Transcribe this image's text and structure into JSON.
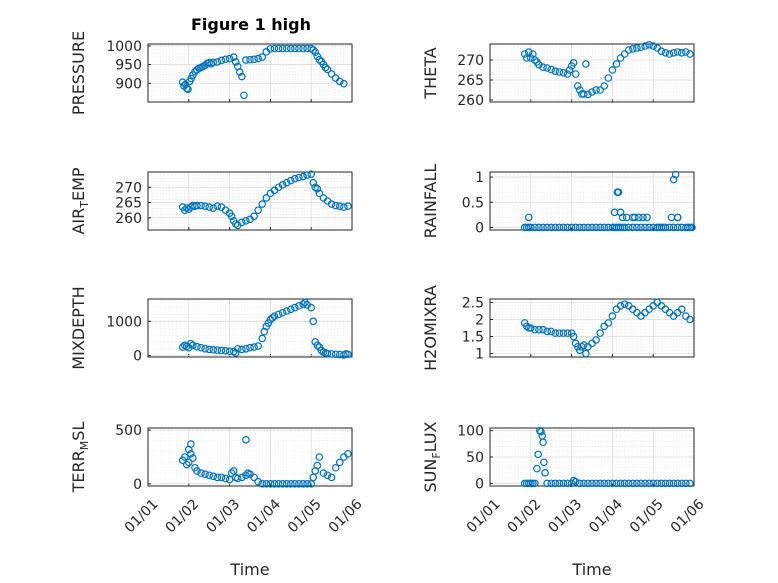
{
  "figure_title": "Figure 1 high",
  "x_tick_labels": [
    "01/01",
    "01/02",
    "01/03",
    "01/04",
    "01/05",
    "01/06"
  ],
  "x_label": "Time",
  "colors": {
    "marker": "#0072BD",
    "axis": "#262626",
    "grid": "#dcdcdc"
  },
  "chart_data": [
    {
      "type": "scatter",
      "ylabel": "PRESSURE",
      "xlim": [
        0,
        5
      ],
      "ylim": [
        850,
        1005
      ],
      "yticks": [
        900,
        950,
        1000
      ],
      "ytick_labels": [
        "900",
        "950",
        "1000"
      ],
      "x": [
        0.85,
        0.88,
        0.92,
        0.95,
        0.98,
        1.02,
        1.06,
        1.1,
        1.15,
        1.2,
        1.25,
        1.3,
        1.35,
        1.4,
        1.45,
        1.5,
        1.55,
        1.6,
        1.7,
        1.8,
        1.9,
        2.0,
        2.1,
        2.15,
        2.2,
        2.25,
        2.3,
        2.35,
        2.4,
        2.5,
        2.6,
        2.7,
        2.8,
        2.9,
        3.0,
        3.1,
        3.2,
        3.3,
        3.4,
        3.5,
        3.6,
        3.7,
        3.8,
        3.9,
        4.0,
        4.05,
        4.1,
        4.15,
        4.2,
        4.25,
        4.3,
        4.35,
        4.4,
        4.5,
        4.6,
        4.7,
        4.8
      ],
      "y": [
        903,
        893,
        897,
        886,
        884,
        905,
        913,
        922,
        931,
        936,
        940,
        942,
        945,
        948,
        953,
        955,
        952,
        956,
        957,
        961,
        964,
        966,
        970,
        957,
        945,
        930,
        918,
        868,
        962,
        963,
        964,
        966,
        970,
        984,
        992,
        993,
        993,
        993,
        993,
        993,
        993,
        993,
        993,
        993,
        993,
        989,
        983,
        972,
        963,
        958,
        950,
        942,
        937,
        925,
        914,
        905,
        899
      ]
    },
    {
      "type": "scatter",
      "ylabel": "THETA",
      "xlim": [
        0,
        5
      ],
      "ylim": [
        259.5,
        274
      ],
      "yticks": [
        260,
        265,
        270
      ],
      "ytick_labels": [
        "260",
        "265",
        "270"
      ],
      "x": [
        0.85,
        0.9,
        0.95,
        1.0,
        1.05,
        1.1,
        1.15,
        1.2,
        1.3,
        1.4,
        1.5,
        1.6,
        1.7,
        1.8,
        1.9,
        1.95,
        2.0,
        2.05,
        2.1,
        2.15,
        2.2,
        2.25,
        2.3,
        2.35,
        2.4,
        2.5,
        2.6,
        2.7,
        2.8,
        2.9,
        3.0,
        3.1,
        3.2,
        3.3,
        3.4,
        3.5,
        3.6,
        3.7,
        3.8,
        3.9,
        4.0,
        4.1,
        4.2,
        4.3,
        4.4,
        4.5,
        4.6,
        4.7,
        4.8,
        4.9
      ],
      "y": [
        271.5,
        270.5,
        272,
        270.5,
        271.5,
        270,
        269.5,
        268.8,
        268.2,
        268,
        267.6,
        267.2,
        267,
        266.8,
        266.5,
        267.5,
        268.5,
        269.3,
        266.5,
        263.5,
        262.5,
        261.5,
        261.5,
        269,
        261.4,
        262,
        262.5,
        262.5,
        263.5,
        265.5,
        267.5,
        269,
        270.5,
        271.5,
        272.5,
        272.8,
        273,
        273.2,
        273.5,
        273.8,
        273.5,
        273,
        272.2,
        271.8,
        271.5,
        271.8,
        272,
        271.8,
        272,
        271.5
      ]
    },
    {
      "type": "scatter",
      "ylabel": "AIR_TEMP",
      "xlim": [
        0,
        5
      ],
      "ylim": [
        256,
        275
      ],
      "yticks": [
        260,
        265,
        270
      ],
      "ytick_labels": [
        "260",
        "265",
        "270"
      ],
      "x": [
        0.85,
        0.9,
        0.95,
        1.0,
        1.05,
        1.1,
        1.15,
        1.2,
        1.3,
        1.4,
        1.5,
        1.6,
        1.7,
        1.8,
        1.9,
        2.0,
        2.05,
        2.1,
        2.15,
        2.2,
        2.3,
        2.4,
        2.5,
        2.6,
        2.7,
        2.8,
        2.9,
        3.0,
        3.1,
        3.2,
        3.3,
        3.4,
        3.5,
        3.6,
        3.7,
        3.8,
        3.9,
        4.0,
        4.05,
        4.1,
        4.15,
        4.2,
        4.3,
        4.4,
        4.5,
        4.6,
        4.7,
        4.8,
        4.9
      ],
      "y": [
        263.5,
        262.5,
        263.2,
        262.8,
        263.5,
        264,
        263.8,
        264,
        264,
        263.8,
        263.5,
        263.2,
        263.8,
        263.5,
        262.5,
        261.5,
        260.5,
        259,
        258,
        257.5,
        258.5,
        259,
        259.5,
        260.5,
        262.5,
        264.5,
        266.5,
        268,
        269,
        270,
        270.8,
        271.5,
        272.2,
        272.8,
        273.2,
        273.5,
        274,
        274.3,
        271.5,
        270,
        269.5,
        268,
        266.5,
        265.5,
        264.5,
        264,
        263.8,
        263.5,
        263.8
      ]
    },
    {
      "type": "scatter",
      "ylabel": "RAINFALL",
      "xlim": [
        0,
        5
      ],
      "ylim": [
        -0.05,
        1.1
      ],
      "yticks": [
        0,
        0.5,
        1
      ],
      "ytick_labels": [
        "0",
        "0.5",
        "1"
      ],
      "x": [
        0.85,
        0.9,
        0.95,
        1.0,
        1.1,
        1.2,
        1.3,
        1.4,
        1.5,
        1.6,
        1.7,
        1.8,
        1.9,
        2.0,
        2.1,
        2.2,
        2.3,
        2.4,
        2.5,
        2.6,
        2.7,
        2.8,
        2.9,
        3.0,
        3.05,
        3.1,
        3.15,
        3.2,
        3.25,
        3.3,
        3.4,
        3.5,
        3.6,
        3.7,
        3.8,
        3.9,
        4.0,
        4.1,
        4.15,
        4.2,
        4.25,
        4.3,
        4.4,
        4.5,
        4.6,
        4.7,
        4.8,
        4.85,
        4.9,
        4.95,
        0.95,
        3.05,
        3.12,
        3.15,
        3.2,
        3.25,
        3.35,
        3.5,
        3.55,
        3.65,
        3.75,
        3.85,
        4.45,
        4.5,
        4.55,
        4.6,
        4.6
      ],
      "y": [
        0,
        0,
        0,
        0,
        0,
        0,
        0,
        0,
        0,
        0,
        0,
        0,
        0,
        0,
        0,
        0,
        0,
        0,
        0,
        0,
        0,
        0,
        0,
        0,
        0,
        0,
        0,
        0,
        0,
        0,
        0,
        0,
        0,
        0,
        0,
        0,
        0,
        0,
        0,
        0,
        0,
        0,
        0,
        0,
        0,
        0,
        0,
        0,
        0,
        0,
        0.2,
        0.3,
        0.7,
        0.7,
        0.3,
        0.2,
        0.2,
        0.2,
        0.2,
        0.2,
        0.2,
        0.2,
        0.2,
        0.95,
        1.05,
        0.2,
        0.2
      ]
    },
    {
      "type": "scatter",
      "ylabel": "MIXDEPTH",
      "xlim": [
        0,
        5
      ],
      "ylim": [
        -40,
        1650
      ],
      "yticks": [
        0,
        1000
      ],
      "ytick_labels": [
        "0",
        "1000"
      ],
      "x": [
        0.85,
        0.9,
        0.95,
        1.0,
        1.05,
        1.1,
        1.2,
        1.3,
        1.4,
        1.5,
        1.6,
        1.7,
        1.8,
        1.9,
        2.0,
        2.1,
        2.15,
        2.2,
        2.3,
        2.4,
        2.5,
        2.6,
        2.7,
        2.8,
        2.85,
        2.9,
        2.95,
        3.0,
        3.05,
        3.1,
        3.2,
        3.3,
        3.4,
        3.5,
        3.6,
        3.7,
        3.8,
        3.85,
        3.9,
        4.0,
        4.05,
        4.1,
        4.15,
        4.2,
        4.25,
        4.3,
        4.35,
        4.4,
        4.5,
        4.6,
        4.7,
        4.8,
        4.85,
        4.9
      ],
      "y": [
        250,
        300,
        270,
        230,
        350,
        300,
        260,
        230,
        200,
        180,
        170,
        160,
        150,
        140,
        130,
        120,
        80,
        200,
        180,
        200,
        230,
        250,
        280,
        500,
        700,
        850,
        950,
        1050,
        1100,
        1150,
        1200,
        1250,
        1300,
        1350,
        1400,
        1450,
        1500,
        1550,
        1480,
        1400,
        1000,
        400,
        300,
        250,
        150,
        100,
        80,
        60,
        50,
        40,
        30,
        20,
        50,
        40
      ]
    },
    {
      "type": "scatter",
      "ylabel": "H2OMIXRA",
      "xlim": [
        0,
        5
      ],
      "ylim": [
        0.9,
        2.6
      ],
      "yticks": [
        1,
        1.5,
        2,
        2.5
      ],
      "ytick_labels": [
        "1",
        "1.5",
        "2",
        "2.5"
      ],
      "x": [
        0.85,
        0.9,
        0.95,
        1.0,
        1.1,
        1.2,
        1.3,
        1.4,
        1.5,
        1.6,
        1.7,
        1.8,
        1.9,
        2.0,
        2.05,
        2.1,
        2.15,
        2.2,
        2.25,
        2.3,
        2.35,
        2.4,
        2.5,
        2.6,
        2.7,
        2.8,
        2.9,
        3.0,
        3.1,
        3.2,
        3.3,
        3.4,
        3.5,
        3.6,
        3.7,
        3.8,
        3.9,
        4.0,
        4.1,
        4.2,
        4.3,
        4.4,
        4.5,
        4.6,
        4.7,
        4.8,
        4.9
      ],
      "y": [
        1.9,
        1.8,
        1.75,
        1.75,
        1.7,
        1.7,
        1.7,
        1.65,
        1.65,
        1.6,
        1.6,
        1.6,
        1.6,
        1.6,
        1.5,
        1.3,
        1.2,
        1.1,
        1.2,
        1.25,
        1.0,
        1.2,
        1.3,
        1.4,
        1.6,
        1.8,
        1.9,
        2.1,
        2.3,
        2.4,
        2.45,
        2.4,
        2.3,
        2.2,
        2.1,
        2.2,
        2.3,
        2.4,
        2.5,
        2.4,
        2.3,
        2.2,
        2.1,
        2.2,
        2.3,
        2.1,
        2.0
      ]
    },
    {
      "type": "scatter",
      "ylabel": "TERR_MSL",
      "xlim": [
        0,
        5
      ],
      "ylim": [
        -20,
        520
      ],
      "yticks": [
        0,
        500
      ],
      "ytick_labels": [
        "0",
        "500"
      ],
      "x": [
        0.85,
        0.9,
        0.95,
        1.0,
        1.05,
        1.1,
        1.15,
        1.2,
        1.3,
        1.4,
        1.5,
        1.6,
        1.7,
        1.8,
        1.9,
        2.0,
        2.05,
        2.1,
        2.15,
        2.2,
        2.3,
        2.4,
        2.45,
        2.5,
        2.6,
        2.7,
        2.8,
        2.9,
        3.0,
        3.1,
        3.2,
        3.3,
        3.4,
        3.5,
        3.6,
        3.7,
        3.8,
        3.9,
        4.0,
        4.05,
        4.1,
        4.15,
        4.2,
        4.3,
        4.4,
        4.5,
        4.6,
        4.7,
        4.8,
        4.9,
        1.0,
        1.05,
        2.4
      ],
      "y": [
        220,
        250,
        180,
        200,
        280,
        240,
        150,
        120,
        100,
        90,
        80,
        70,
        60,
        60,
        50,
        40,
        100,
        120,
        60,
        50,
        60,
        80,
        100,
        90,
        60,
        20,
        0,
        0,
        0,
        0,
        0,
        0,
        0,
        0,
        0,
        0,
        0,
        0,
        0,
        60,
        120,
        170,
        250,
        100,
        80,
        60,
        150,
        200,
        250,
        280,
        320,
        370,
        410
      ]
    },
    {
      "type": "scatter",
      "ylabel": "SUN_FLUX",
      "xlim": [
        0,
        5
      ],
      "ylim": [
        -5,
        105
      ],
      "yticks": [
        0,
        50,
        100
      ],
      "ytick_labels": [
        "0",
        "50",
        "100"
      ],
      "x": [
        0.85,
        0.9,
        0.95,
        1.0,
        1.05,
        1.1,
        1.15,
        1.18,
        1.22,
        1.25,
        1.28,
        1.3,
        1.32,
        1.35,
        1.4,
        1.5,
        1.6,
        1.7,
        1.8,
        1.9,
        2.0,
        2.05,
        2.1,
        2.2,
        2.3,
        2.4,
        2.5,
        2.6,
        2.7,
        2.8,
        2.9,
        3.0,
        3.1,
        3.2,
        3.3,
        3.4,
        3.5,
        3.6,
        3.7,
        3.8,
        3.9,
        4.0,
        4.1,
        4.2,
        4.3,
        4.4,
        4.5,
        4.6,
        4.7,
        4.8,
        4.9
      ],
      "y": [
        0,
        0,
        0,
        0,
        0,
        0,
        28,
        55,
        100,
        98,
        90,
        78,
        40,
        20,
        0,
        0,
        0,
        0,
        0,
        0,
        0,
        5,
        3,
        0,
        0,
        0,
        0,
        0,
        0,
        0,
        0,
        0,
        0,
        0,
        0,
        0,
        0,
        0,
        0,
        0,
        0,
        0,
        0,
        0,
        0,
        0,
        0,
        0,
        0,
        0,
        0
      ]
    }
  ]
}
